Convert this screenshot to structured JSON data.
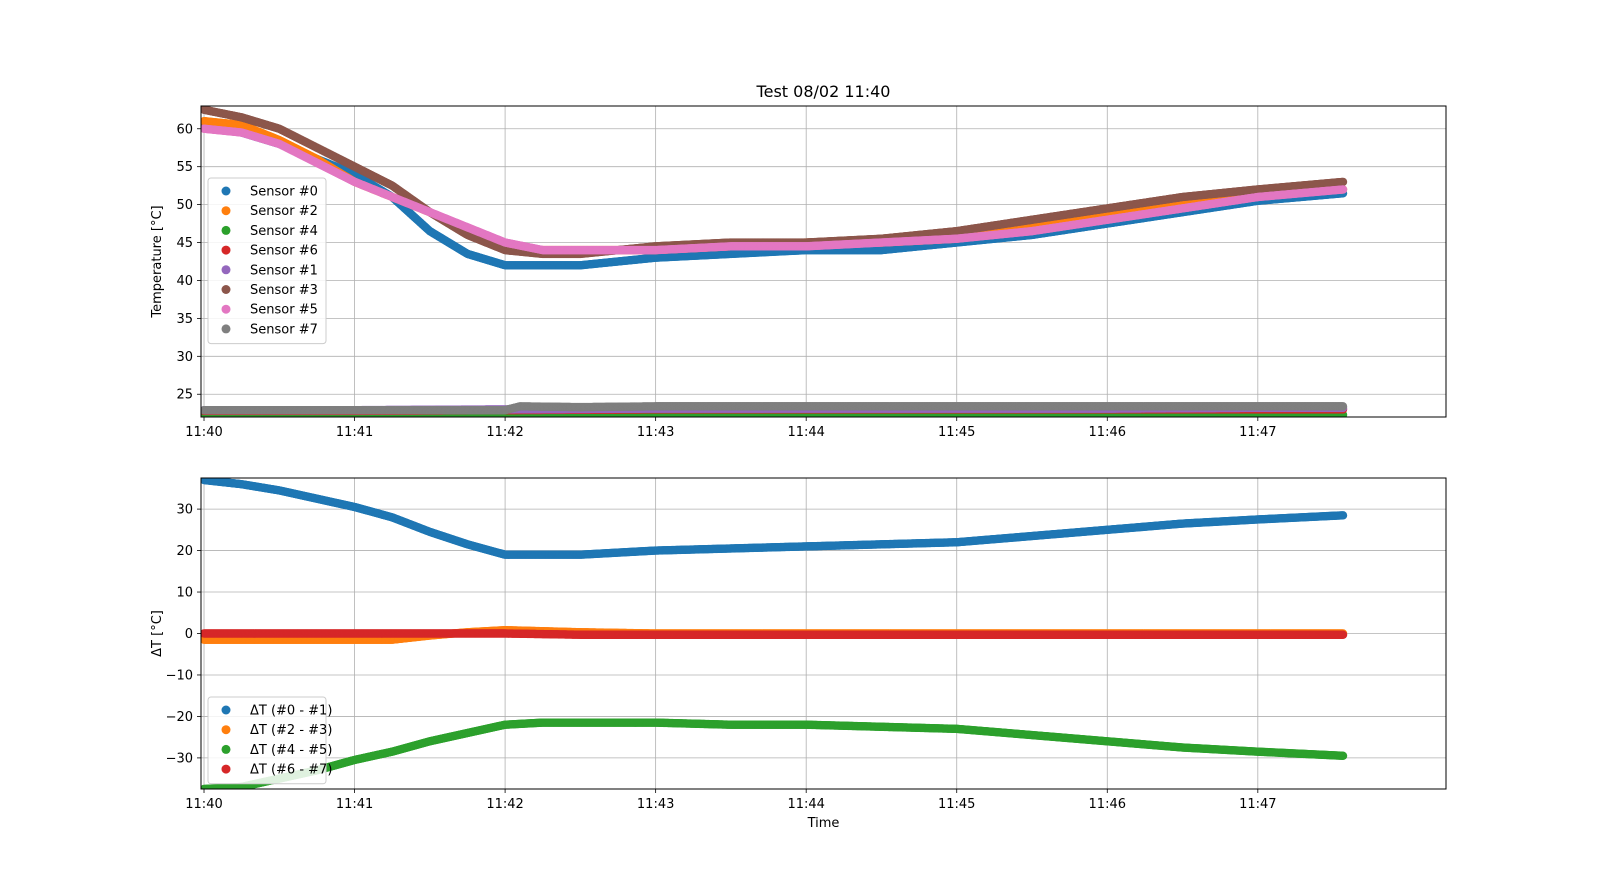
{
  "chart_data": [
    {
      "type": "scatter",
      "title": "Test 08/02 11:40",
      "xlabel": "",
      "ylabel": "Temperature [°C]",
      "xlim": [
        -0.02,
        8.25
      ],
      "ylim": [
        22.0,
        63.0
      ],
      "x_ticks": [
        0,
        1,
        2,
        3,
        4,
        5,
        6,
        7
      ],
      "x_tick_labels": [
        "11:40",
        "11:41",
        "11:42",
        "11:43",
        "11:44",
        "11:45",
        "11:46",
        "11:47"
      ],
      "y_ticks": [
        25,
        30,
        35,
        40,
        45,
        50,
        55,
        60
      ],
      "y_tick_labels": [
        "25",
        "30",
        "35",
        "40",
        "45",
        "50",
        "55",
        "60"
      ],
      "grid": true,
      "legend_position": "center-left",
      "series": [
        {
          "name": "Sensor #0",
          "color": "#1f77b4",
          "x": [
            0.0,
            0.25,
            0.5,
            0.75,
            1.0,
            1.25,
            1.5,
            1.75,
            2.0,
            2.25,
            2.5,
            2.75,
            3.0,
            3.5,
            4.0,
            4.5,
            5.0,
            5.5,
            6.0,
            6.5,
            7.0,
            7.57
          ],
          "y": [
            60.5,
            59.5,
            58.0,
            56.0,
            54.0,
            51.0,
            46.5,
            43.5,
            42.0,
            42.0,
            42.0,
            42.5,
            43.0,
            43.5,
            44.0,
            44.0,
            45.0,
            46.0,
            47.5,
            49.0,
            50.5,
            51.5
          ]
        },
        {
          "name": "Sensor #2",
          "color": "#ff7f0e",
          "x": [
            0.0,
            0.25,
            0.5,
            0.75,
            1.0,
            1.25,
            1.5,
            1.75,
            2.0,
            2.25,
            2.5,
            2.75,
            3.0,
            3.5,
            4.0,
            4.5,
            5.0,
            5.5,
            6.0,
            6.5,
            7.0,
            7.57
          ],
          "y": [
            61.0,
            60.5,
            58.5,
            56.0,
            53.0,
            51.0,
            49.0,
            46.5,
            44.5,
            44.0,
            44.0,
            44.0,
            44.0,
            44.5,
            45.0,
            45.0,
            45.5,
            47.0,
            48.5,
            50.0,
            51.5,
            52.0
          ]
        },
        {
          "name": "Sensor #4",
          "color": "#2ca02c",
          "x": [
            0.0,
            1.0,
            2.0,
            3.0,
            4.0,
            5.0,
            6.0,
            7.0,
            7.57
          ],
          "y": [
            22.4,
            22.4,
            22.4,
            22.3,
            22.3,
            22.3,
            22.3,
            22.3,
            22.3
          ]
        },
        {
          "name": "Sensor #6",
          "color": "#d62728",
          "x": [
            0.0,
            1.0,
            2.0,
            3.0,
            4.0,
            5.0,
            6.0,
            7.0,
            7.57
          ],
          "y": [
            22.8,
            22.8,
            22.9,
            23.0,
            23.0,
            23.0,
            23.0,
            23.0,
            23.0
          ]
        },
        {
          "name": "Sensor #1",
          "color": "#9467bd",
          "x": [
            0.0,
            1.0,
            2.0,
            3.0,
            4.0,
            5.0,
            6.0,
            7.0,
            7.57
          ],
          "y": [
            22.9,
            22.9,
            23.0,
            23.1,
            23.1,
            23.1,
            23.1,
            23.2,
            23.2
          ]
        },
        {
          "name": "Sensor #3",
          "color": "#8c564b",
          "x": [
            0.0,
            0.25,
            0.5,
            0.75,
            1.0,
            1.25,
            1.5,
            1.75,
            2.0,
            2.25,
            2.5,
            2.75,
            3.0,
            3.5,
            4.0,
            4.5,
            5.0,
            5.5,
            6.0,
            6.5,
            7.0,
            7.57
          ],
          "y": [
            62.5,
            61.5,
            60.0,
            57.5,
            55.0,
            52.5,
            49.0,
            46.0,
            44.0,
            43.5,
            43.5,
            44.0,
            44.5,
            45.0,
            45.0,
            45.5,
            46.5,
            48.0,
            49.5,
            51.0,
            52.0,
            53.0
          ]
        },
        {
          "name": "Sensor #5",
          "color": "#e377c2",
          "x": [
            0.0,
            0.25,
            0.5,
            0.75,
            1.0,
            1.25,
            1.5,
            1.75,
            2.0,
            2.25,
            2.5,
            2.75,
            3.0,
            3.5,
            4.0,
            4.5,
            5.0,
            5.5,
            6.0,
            6.5,
            7.0,
            7.57
          ],
          "y": [
            60.0,
            59.5,
            58.0,
            55.5,
            53.0,
            51.0,
            49.0,
            47.0,
            45.0,
            44.0,
            44.0,
            44.0,
            44.0,
            44.5,
            44.5,
            45.0,
            45.5,
            46.5,
            48.0,
            49.5,
            51.0,
            52.0
          ]
        },
        {
          "name": "Sensor #7",
          "color": "#7f7f7f",
          "x": [
            0.0,
            1.0,
            2.0,
            2.1,
            2.5,
            3.0,
            4.0,
            5.0,
            6.0,
            7.0,
            7.57
          ],
          "y": [
            22.9,
            22.9,
            22.9,
            23.4,
            23.3,
            23.4,
            23.4,
            23.4,
            23.4,
            23.4,
            23.4
          ]
        }
      ]
    },
    {
      "type": "scatter",
      "title": "",
      "xlabel": "Time",
      "ylabel": "ΔT [°C]",
      "xlim": [
        -0.02,
        8.25
      ],
      "ylim": [
        -37.5,
        37.5
      ],
      "x_ticks": [
        0,
        1,
        2,
        3,
        4,
        5,
        6,
        7
      ],
      "x_tick_labels": [
        "11:40",
        "11:41",
        "11:42",
        "11:43",
        "11:44",
        "11:45",
        "11:46",
        "11:47"
      ],
      "y_ticks": [
        -30,
        -20,
        -10,
        0,
        10,
        20,
        30
      ],
      "y_tick_labels": [
        "−30",
        "−20",
        "−10",
        "0",
        "10",
        "20",
        "30"
      ],
      "grid": true,
      "legend_position": "lower-left",
      "series": [
        {
          "name": "ΔT (#0 - #1)",
          "color": "#1f77b4",
          "x": [
            0.0,
            0.25,
            0.5,
            0.75,
            1.0,
            1.25,
            1.5,
            1.75,
            2.0,
            2.25,
            2.5,
            3.0,
            3.5,
            4.0,
            4.5,
            5.0,
            5.5,
            6.0,
            6.5,
            7.0,
            7.57
          ],
          "y": [
            37.0,
            36.0,
            34.5,
            32.5,
            30.5,
            28.0,
            24.5,
            21.5,
            19.0,
            19.0,
            19.0,
            20.0,
            20.5,
            21.0,
            21.5,
            22.0,
            23.5,
            25.0,
            26.5,
            27.5,
            28.5
          ]
        },
        {
          "name": "ΔT (#2 - #3)",
          "color": "#ff7f0e",
          "x": [
            0.0,
            0.5,
            1.0,
            1.25,
            1.5,
            1.75,
            2.0,
            2.5,
            3.0,
            4.0,
            5.0,
            6.0,
            7.0,
            7.57
          ],
          "y": [
            -1.5,
            -1.5,
            -1.5,
            -1.5,
            -0.5,
            0.3,
            0.8,
            0.3,
            0.0,
            0.0,
            0.0,
            0.0,
            0.0,
            0.0
          ]
        },
        {
          "name": "ΔT (#4 - #5)",
          "color": "#2ca02c",
          "x": [
            0.0,
            0.25,
            0.5,
            0.75,
            1.0,
            1.25,
            1.5,
            1.75,
            2.0,
            2.25,
            2.5,
            3.0,
            3.5,
            4.0,
            4.5,
            5.0,
            5.5,
            6.0,
            6.5,
            7.0,
            7.57
          ],
          "y": [
            -37.5,
            -37.0,
            -35.0,
            -33.0,
            -30.5,
            -28.5,
            -26.0,
            -24.0,
            -22.0,
            -21.5,
            -21.5,
            -21.5,
            -22.0,
            -22.0,
            -22.5,
            -23.0,
            -24.5,
            -26.0,
            -27.5,
            -28.5,
            -29.5
          ]
        },
        {
          "name": "ΔT (#6 - #7)",
          "color": "#d62728",
          "x": [
            0.0,
            0.5,
            1.0,
            1.5,
            2.0,
            2.5,
            3.0,
            4.0,
            5.0,
            6.0,
            7.0,
            7.57
          ],
          "y": [
            0.0,
            0.0,
            0.0,
            0.0,
            0.0,
            -0.3,
            -0.3,
            -0.3,
            -0.3,
            -0.3,
            -0.3,
            -0.3
          ]
        }
      ]
    }
  ]
}
